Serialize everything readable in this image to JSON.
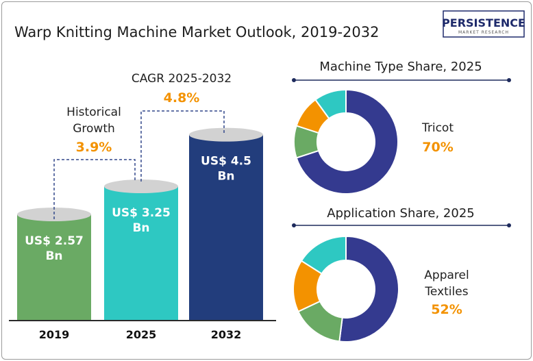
{
  "title": "Warp Knitting Machine Market Outlook, 2019-2032",
  "logo": {
    "name": "PERSISTENCE",
    "tagline": "MARKET RESEARCH"
  },
  "chart_data": [
    {
      "type": "bar",
      "categories": [
        "2019",
        "2025",
        "2032"
      ],
      "values": [
        2.57,
        3.25,
        4.5
      ],
      "value_labels": [
        "US$ 2.57 Bn",
        "US$ 3.25 Bn",
        "US$ 4.5 Bn"
      ],
      "colors": [
        "#6aaa64",
        "#2ec8c2",
        "#223d7c"
      ],
      "annotations": [
        {
          "text": "Historical Growth",
          "value": "3.9%",
          "from": "2019",
          "to": "2025"
        },
        {
          "text": "CAGR 2025-2032",
          "value": "4.8%",
          "from": "2025",
          "to": "2032"
        }
      ]
    },
    {
      "type": "pie",
      "title": "Machine Type Share, 2025",
      "highlight_label": "Tricot",
      "highlight_value": "70%",
      "slices": [
        {
          "value": 70,
          "color": "#343a8f"
        },
        {
          "value": 10,
          "color": "#6aaa64"
        },
        {
          "value": 10,
          "color": "#f39200"
        },
        {
          "value": 10,
          "color": "#2ec8c2"
        }
      ]
    },
    {
      "type": "pie",
      "title": "Application Share, 2025",
      "highlight_label": "Apparel Textiles",
      "highlight_value": "52%",
      "slices": [
        {
          "value": 52,
          "color": "#343a8f"
        },
        {
          "value": 16,
          "color": "#6aaa64"
        },
        {
          "value": 16,
          "color": "#f39200"
        },
        {
          "value": 16,
          "color": "#2ec8c2"
        }
      ]
    }
  ]
}
